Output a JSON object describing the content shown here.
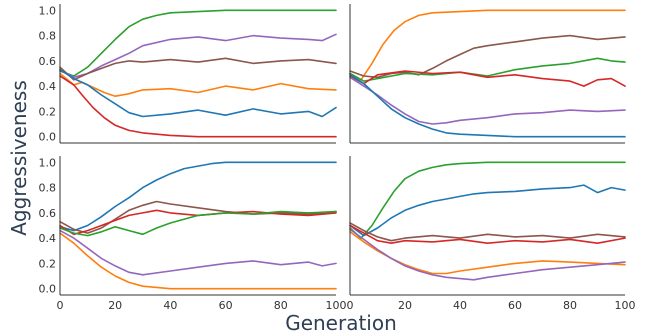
{
  "figure": {
    "xlabel": "Generation",
    "ylabel": "Aggressiveness",
    "colors": {
      "blue": "#1f77b4",
      "orange": "#ff7f0e",
      "green": "#2ca02c",
      "red": "#d62728",
      "purple": "#9467bd",
      "brown": "#8c564b"
    }
  },
  "chart_data": [
    {
      "type": "line",
      "panel": "top-left",
      "xlim": [
        0,
        100
      ],
      "ylim": [
        -0.05,
        1.05
      ],
      "xticks": [
        "0",
        "20",
        "40",
        "60",
        "80",
        "100"
      ],
      "yticks": [
        "0.0",
        "0.2",
        "0.4",
        "0.6",
        "0.8",
        "1.0"
      ],
      "show_xticks": false,
      "show_yticks": true,
      "grid": false,
      "series": [
        {
          "color": "green",
          "x": [
            0,
            5,
            10,
            15,
            20,
            25,
            30,
            35,
            40,
            50,
            60,
            70,
            80,
            90,
            100
          ],
          "y": [
            0.52,
            0.48,
            0.55,
            0.66,
            0.77,
            0.87,
            0.93,
            0.96,
            0.98,
            0.99,
            1.0,
            1.0,
            1.0,
            1.0,
            1.0
          ]
        },
        {
          "color": "purple",
          "x": [
            0,
            5,
            10,
            15,
            20,
            25,
            30,
            40,
            50,
            60,
            70,
            80,
            90,
            95,
            100
          ],
          "y": [
            0.53,
            0.47,
            0.5,
            0.56,
            0.61,
            0.66,
            0.72,
            0.77,
            0.79,
            0.76,
            0.8,
            0.78,
            0.77,
            0.76,
            0.81
          ]
        },
        {
          "color": "brown",
          "x": [
            0,
            5,
            10,
            15,
            20,
            25,
            30,
            40,
            50,
            60,
            70,
            80,
            90,
            100
          ],
          "y": [
            0.55,
            0.45,
            0.5,
            0.54,
            0.58,
            0.6,
            0.59,
            0.61,
            0.59,
            0.62,
            0.58,
            0.6,
            0.61,
            0.58
          ]
        },
        {
          "color": "orange",
          "x": [
            0,
            5,
            8,
            12,
            16,
            20,
            25,
            30,
            40,
            50,
            60,
            70,
            80,
            90,
            100
          ],
          "y": [
            0.5,
            0.41,
            0.43,
            0.39,
            0.35,
            0.32,
            0.34,
            0.37,
            0.38,
            0.35,
            0.4,
            0.37,
            0.42,
            0.38,
            0.37
          ]
        },
        {
          "color": "blue",
          "x": [
            0,
            5,
            10,
            15,
            20,
            25,
            30,
            40,
            50,
            60,
            70,
            80,
            90,
            95,
            100
          ],
          "y": [
            0.53,
            0.46,
            0.41,
            0.33,
            0.26,
            0.19,
            0.16,
            0.18,
            0.21,
            0.17,
            0.22,
            0.18,
            0.2,
            0.16,
            0.23
          ]
        },
        {
          "color": "red",
          "x": [
            0,
            5,
            8,
            12,
            16,
            20,
            25,
            30,
            35,
            40,
            50,
            60,
            70,
            80,
            90,
            100
          ],
          "y": [
            0.48,
            0.41,
            0.33,
            0.23,
            0.15,
            0.09,
            0.05,
            0.03,
            0.02,
            0.01,
            0.0,
            0.0,
            0.0,
            0.0,
            0.0,
            0.0
          ]
        }
      ]
    },
    {
      "type": "line",
      "panel": "top-right",
      "xlim": [
        0,
        100
      ],
      "ylim": [
        -0.05,
        1.05
      ],
      "show_xticks": false,
      "show_yticks": false,
      "grid": false,
      "series": [
        {
          "color": "orange",
          "x": [
            0,
            4,
            8,
            12,
            16,
            20,
            25,
            30,
            40,
            50,
            60,
            70,
            80,
            90,
            100
          ],
          "y": [
            0.5,
            0.45,
            0.58,
            0.73,
            0.84,
            0.91,
            0.96,
            0.98,
            0.99,
            1.0,
            1.0,
            1.0,
            1.0,
            1.0,
            1.0
          ]
        },
        {
          "color": "brown",
          "x": [
            0,
            5,
            10,
            15,
            20,
            25,
            30,
            35,
            40,
            45,
            50,
            60,
            70,
            80,
            90,
            100
          ],
          "y": [
            0.52,
            0.48,
            0.47,
            0.5,
            0.51,
            0.49,
            0.54,
            0.6,
            0.65,
            0.7,
            0.72,
            0.75,
            0.78,
            0.8,
            0.77,
            0.79
          ]
        },
        {
          "color": "green",
          "x": [
            0,
            5,
            10,
            20,
            30,
            40,
            50,
            60,
            70,
            80,
            90,
            95,
            100
          ],
          "y": [
            0.5,
            0.44,
            0.46,
            0.5,
            0.49,
            0.51,
            0.48,
            0.53,
            0.56,
            0.58,
            0.62,
            0.6,
            0.59
          ]
        },
        {
          "color": "red",
          "x": [
            0,
            5,
            10,
            20,
            30,
            40,
            50,
            60,
            70,
            80,
            85,
            90,
            95,
            100
          ],
          "y": [
            0.48,
            0.42,
            0.49,
            0.52,
            0.5,
            0.51,
            0.47,
            0.49,
            0.46,
            0.44,
            0.4,
            0.45,
            0.46,
            0.4
          ]
        },
        {
          "color": "purple",
          "x": [
            0,
            5,
            10,
            15,
            20,
            25,
            30,
            35,
            40,
            50,
            60,
            70,
            80,
            90,
            100
          ],
          "y": [
            0.47,
            0.4,
            0.33,
            0.25,
            0.18,
            0.12,
            0.1,
            0.11,
            0.13,
            0.15,
            0.18,
            0.19,
            0.21,
            0.2,
            0.21
          ]
        },
        {
          "color": "blue",
          "x": [
            0,
            5,
            10,
            15,
            20,
            25,
            30,
            35,
            40,
            50,
            60,
            70,
            80,
            90,
            100
          ],
          "y": [
            0.49,
            0.42,
            0.32,
            0.22,
            0.15,
            0.1,
            0.06,
            0.03,
            0.02,
            0.01,
            0.0,
            0.0,
            0.0,
            0.0,
            0.0
          ]
        }
      ]
    },
    {
      "type": "line",
      "panel": "bottom-left",
      "xlim": [
        0,
        100
      ],
      "ylim": [
        -0.05,
        1.05
      ],
      "xticks": [
        "0",
        "20",
        "40",
        "60",
        "80",
        "100"
      ],
      "yticks": [
        "0.0",
        "0.2",
        "0.4",
        "0.6",
        "0.8",
        "1.0"
      ],
      "show_xticks": true,
      "show_yticks": true,
      "grid": false,
      "series": [
        {
          "color": "blue",
          "x": [
            0,
            5,
            10,
            15,
            20,
            25,
            30,
            35,
            40,
            45,
            50,
            55,
            60,
            70,
            80,
            90,
            100
          ],
          "y": [
            0.49,
            0.46,
            0.5,
            0.57,
            0.65,
            0.72,
            0.8,
            0.86,
            0.91,
            0.95,
            0.97,
            0.99,
            1.0,
            1.0,
            1.0,
            1.0,
            1.0
          ]
        },
        {
          "color": "brown",
          "x": [
            0,
            5,
            10,
            15,
            20,
            25,
            30,
            35,
            40,
            50,
            60,
            70,
            80,
            90,
            100
          ],
          "y": [
            0.53,
            0.47,
            0.44,
            0.48,
            0.55,
            0.62,
            0.66,
            0.69,
            0.67,
            0.64,
            0.61,
            0.59,
            0.6,
            0.59,
            0.61
          ]
        },
        {
          "color": "red",
          "x": [
            0,
            5,
            10,
            15,
            20,
            25,
            30,
            35,
            40,
            50,
            60,
            70,
            80,
            90,
            100
          ],
          "y": [
            0.5,
            0.43,
            0.46,
            0.5,
            0.54,
            0.58,
            0.6,
            0.62,
            0.6,
            0.58,
            0.6,
            0.61,
            0.59,
            0.58,
            0.6
          ]
        },
        {
          "color": "green",
          "x": [
            0,
            5,
            10,
            15,
            20,
            25,
            30,
            35,
            40,
            50,
            60,
            70,
            80,
            90,
            100
          ],
          "y": [
            0.48,
            0.44,
            0.42,
            0.45,
            0.49,
            0.46,
            0.43,
            0.48,
            0.52,
            0.58,
            0.6,
            0.59,
            0.61,
            0.6,
            0.61
          ]
        },
        {
          "color": "purple",
          "x": [
            0,
            5,
            10,
            15,
            20,
            25,
            30,
            40,
            50,
            60,
            70,
            80,
            90,
            95,
            100
          ],
          "y": [
            0.46,
            0.4,
            0.32,
            0.24,
            0.18,
            0.13,
            0.11,
            0.14,
            0.17,
            0.2,
            0.22,
            0.19,
            0.21,
            0.18,
            0.2
          ]
        },
        {
          "color": "orange",
          "x": [
            0,
            5,
            10,
            15,
            20,
            25,
            30,
            35,
            40,
            50,
            60,
            70,
            80,
            90,
            100
          ],
          "y": [
            0.44,
            0.36,
            0.26,
            0.17,
            0.1,
            0.05,
            0.02,
            0.01,
            0.0,
            0.0,
            0.0,
            0.0,
            0.0,
            0.0,
            0.0
          ]
        }
      ]
    },
    {
      "type": "line",
      "panel": "bottom-right",
      "xlim": [
        0,
        100
      ],
      "ylim": [
        -0.05,
        1.05
      ],
      "xticks": [
        "0",
        "20",
        "40",
        "60",
        "80",
        "100"
      ],
      "show_xticks": true,
      "show_yticks": false,
      "grid": false,
      "series": [
        {
          "color": "green",
          "x": [
            0,
            4,
            8,
            12,
            16,
            20,
            25,
            30,
            35,
            40,
            50,
            60,
            70,
            80,
            90,
            100
          ],
          "y": [
            0.48,
            0.4,
            0.5,
            0.64,
            0.77,
            0.87,
            0.93,
            0.96,
            0.98,
            0.99,
            1.0,
            1.0,
            1.0,
            1.0,
            1.0,
            1.0
          ]
        },
        {
          "color": "blue",
          "x": [
            0,
            5,
            10,
            15,
            20,
            25,
            30,
            35,
            40,
            45,
            50,
            60,
            70,
            80,
            85,
            90,
            95,
            100
          ],
          "y": [
            0.5,
            0.42,
            0.48,
            0.56,
            0.62,
            0.66,
            0.69,
            0.71,
            0.73,
            0.75,
            0.76,
            0.77,
            0.79,
            0.8,
            0.82,
            0.76,
            0.8,
            0.78
          ]
        },
        {
          "color": "brown",
          "x": [
            0,
            5,
            10,
            15,
            20,
            30,
            40,
            50,
            60,
            70,
            80,
            90,
            100
          ],
          "y": [
            0.52,
            0.46,
            0.41,
            0.38,
            0.4,
            0.42,
            0.4,
            0.43,
            0.41,
            0.42,
            0.4,
            0.43,
            0.41
          ]
        },
        {
          "color": "red",
          "x": [
            0,
            5,
            10,
            15,
            20,
            30,
            40,
            50,
            60,
            70,
            80,
            90,
            100
          ],
          "y": [
            0.5,
            0.44,
            0.38,
            0.36,
            0.38,
            0.37,
            0.39,
            0.36,
            0.38,
            0.37,
            0.39,
            0.36,
            0.4
          ]
        },
        {
          "color": "orange",
          "x": [
            0,
            5,
            10,
            15,
            20,
            25,
            30,
            35,
            40,
            50,
            60,
            70,
            80,
            90,
            100
          ],
          "y": [
            0.45,
            0.37,
            0.3,
            0.24,
            0.19,
            0.15,
            0.12,
            0.12,
            0.14,
            0.17,
            0.2,
            0.22,
            0.21,
            0.2,
            0.19
          ]
        },
        {
          "color": "purple",
          "x": [
            0,
            5,
            10,
            15,
            20,
            25,
            30,
            35,
            40,
            45,
            50,
            60,
            70,
            80,
            90,
            100
          ],
          "y": [
            0.47,
            0.39,
            0.31,
            0.24,
            0.18,
            0.14,
            0.11,
            0.09,
            0.08,
            0.07,
            0.09,
            0.12,
            0.15,
            0.17,
            0.19,
            0.21
          ]
        }
      ]
    }
  ]
}
